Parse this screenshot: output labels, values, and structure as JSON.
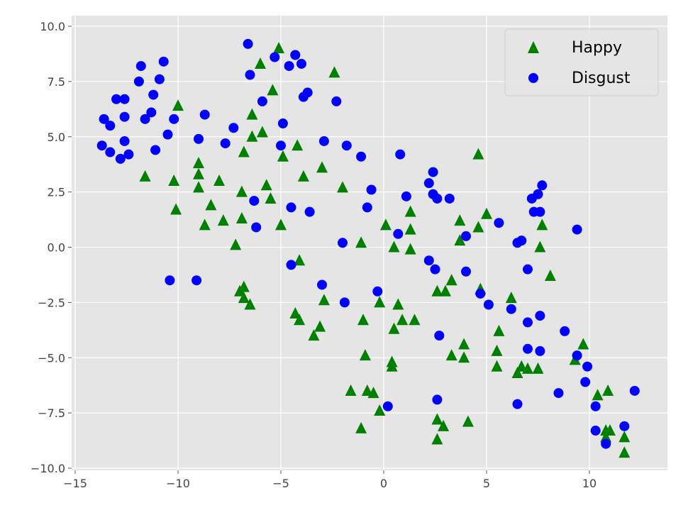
{
  "chart_data": {
    "type": "scatter",
    "xlim": [
      -15,
      14
    ],
    "ylim": [
      -10.5,
      10.5
    ],
    "xticks": [
      -15,
      -10,
      -5,
      0,
      5,
      10
    ],
    "yticks": [
      -10,
      -7.5,
      -5,
      -2.5,
      0,
      2.5,
      5,
      7.5,
      10
    ],
    "xtick_labels": [
      "−15",
      "−10",
      "−5",
      "0",
      "5",
      "10"
    ],
    "ytick_labels": [
      "−10.0",
      "−7.5",
      "−5.0",
      "−2.5",
      "0.0",
      "2.5",
      "5.0",
      "7.5",
      "10.0"
    ],
    "grid": true,
    "legend_position": "top-right",
    "background_color": "#e5e5e5",
    "series": [
      {
        "name": "Happy",
        "marker": "triangle",
        "color": "#008000",
        "points": [
          [
            -5.1,
            9.0
          ],
          [
            -6.0,
            8.3
          ],
          [
            -2.4,
            7.9
          ],
          [
            -5.4,
            7.1
          ],
          [
            -10.0,
            6.4
          ],
          [
            -6.4,
            6.0
          ],
          [
            -6.4,
            5.0
          ],
          [
            -5.9,
            5.2
          ],
          [
            -6.8,
            4.3
          ],
          [
            -4.9,
            4.1
          ],
          [
            -4.2,
            4.6
          ],
          [
            4.6,
            4.2
          ],
          [
            -11.6,
            3.2
          ],
          [
            -10.2,
            3.0
          ],
          [
            -9.0,
            3.8
          ],
          [
            -9.0,
            3.3
          ],
          [
            -9.0,
            2.7
          ],
          [
            -8.0,
            3.0
          ],
          [
            -3.0,
            3.6
          ],
          [
            -3.9,
            3.2
          ],
          [
            -5.7,
            2.8
          ],
          [
            -6.9,
            2.5
          ],
          [
            -5.5,
            2.2
          ],
          [
            -2.0,
            2.7
          ],
          [
            -10.1,
            1.7
          ],
          [
            -8.4,
            1.9
          ],
          [
            -8.7,
            1.0
          ],
          [
            -7.8,
            1.2
          ],
          [
            -6.9,
            1.3
          ],
          [
            -5.0,
            1.0
          ],
          [
            -7.2,
            0.1
          ],
          [
            1.3,
            1.6
          ],
          [
            3.7,
            1.2
          ],
          [
            5.0,
            1.5
          ],
          [
            4.6,
            0.9
          ],
          [
            1.3,
            0.8
          ],
          [
            0.1,
            1.0
          ],
          [
            -1.1,
            0.2
          ],
          [
            0.5,
            0.0
          ],
          [
            1.3,
            -0.1
          ],
          [
            3.7,
            0.3
          ],
          [
            7.7,
            1.0
          ],
          [
            7.6,
            0.0
          ],
          [
            8.1,
            -1.3
          ],
          [
            -4.1,
            -0.6
          ],
          [
            -7.0,
            -2.0
          ],
          [
            -6.8,
            -1.8
          ],
          [
            -6.8,
            -2.3
          ],
          [
            -6.5,
            -2.6
          ],
          [
            -2.9,
            -2.4
          ],
          [
            -4.3,
            -3.0
          ],
          [
            -4.1,
            -3.3
          ],
          [
            -3.1,
            -3.6
          ],
          [
            -3.4,
            -4.0
          ],
          [
            -0.2,
            -2.5
          ],
          [
            0.7,
            -2.6
          ],
          [
            0.9,
            -3.3
          ],
          [
            1.5,
            -3.3
          ],
          [
            0.5,
            -3.7
          ],
          [
            2.6,
            -2.0
          ],
          [
            3.0,
            -2.0
          ],
          [
            3.3,
            -1.5
          ],
          [
            4.7,
            -1.9
          ],
          [
            6.2,
            -2.3
          ],
          [
            -1.0,
            -3.3
          ],
          [
            -0.9,
            -4.9
          ],
          [
            0.4,
            -5.2
          ],
          [
            0.4,
            -5.4
          ],
          [
            -1.6,
            -6.5
          ],
          [
            -0.8,
            -6.5
          ],
          [
            -0.5,
            -6.6
          ],
          [
            -0.2,
            -7.4
          ],
          [
            -1.1,
            -8.2
          ],
          [
            2.6,
            -7.8
          ],
          [
            2.9,
            -8.1
          ],
          [
            2.6,
            -8.7
          ],
          [
            3.3,
            -4.9
          ],
          [
            3.9,
            -4.4
          ],
          [
            3.9,
            -5.0
          ],
          [
            4.1,
            -7.9
          ],
          [
            5.6,
            -3.8
          ],
          [
            5.5,
            -4.7
          ],
          [
            5.5,
            -5.4
          ],
          [
            6.7,
            -5.4
          ],
          [
            7.0,
            -5.5
          ],
          [
            7.5,
            -5.5
          ],
          [
            6.5,
            -5.7
          ],
          [
            9.3,
            -5.1
          ],
          [
            9.7,
            -4.4
          ],
          [
            10.4,
            -6.7
          ],
          [
            10.9,
            -6.5
          ],
          [
            10.8,
            -8.3
          ],
          [
            11.0,
            -8.3
          ],
          [
            10.8,
            -8.6
          ],
          [
            11.7,
            -8.6
          ],
          [
            11.7,
            -9.3
          ]
        ]
      },
      {
        "name": "Disgust",
        "marker": "circle",
        "color": "#0000ff",
        "points": [
          [
            -6.6,
            9.2
          ],
          [
            -5.3,
            8.6
          ],
          [
            -4.3,
            8.7
          ],
          [
            -4.6,
            8.2
          ],
          [
            -4.0,
            8.3
          ],
          [
            -6.5,
            7.8
          ],
          [
            -10.7,
            8.4
          ],
          [
            -11.8,
            8.2
          ],
          [
            -10.9,
            7.6
          ],
          [
            -11.9,
            7.5
          ],
          [
            -11.2,
            6.9
          ],
          [
            -13.0,
            6.7
          ],
          [
            -12.6,
            6.7
          ],
          [
            -13.6,
            5.8
          ],
          [
            -13.3,
            5.5
          ],
          [
            -12.6,
            5.9
          ],
          [
            -11.3,
            6.1
          ],
          [
            -11.6,
            5.8
          ],
          [
            -10.2,
            5.8
          ],
          [
            -8.7,
            6.0
          ],
          [
            -5.9,
            6.6
          ],
          [
            -3.7,
            7.0
          ],
          [
            -3.9,
            6.8
          ],
          [
            -2.3,
            6.6
          ],
          [
            -4.9,
            5.6
          ],
          [
            -7.3,
            5.4
          ],
          [
            -10.5,
            5.1
          ],
          [
            -9.0,
            4.9
          ],
          [
            -7.7,
            4.7
          ],
          [
            -5.0,
            4.6
          ],
          [
            -2.9,
            4.8
          ],
          [
            -13.7,
            4.6
          ],
          [
            -13.3,
            4.3
          ],
          [
            -12.6,
            4.8
          ],
          [
            -11.1,
            4.4
          ],
          [
            -12.8,
            4.0
          ],
          [
            -12.4,
            4.2
          ],
          [
            -1.8,
            4.6
          ],
          [
            -1.1,
            4.1
          ],
          [
            0.8,
            4.2
          ],
          [
            2.4,
            3.4
          ],
          [
            2.2,
            2.9
          ],
          [
            -0.6,
            2.6
          ],
          [
            1.1,
            2.3
          ],
          [
            2.4,
            2.4
          ],
          [
            2.6,
            2.2
          ],
          [
            3.2,
            2.2
          ],
          [
            7.2,
            2.2
          ],
          [
            7.5,
            2.4
          ],
          [
            7.7,
            2.8
          ],
          [
            7.3,
            1.6
          ],
          [
            7.6,
            1.6
          ],
          [
            -6.3,
            2.1
          ],
          [
            -4.5,
            1.8
          ],
          [
            -3.6,
            1.6
          ],
          [
            -0.8,
            1.8
          ],
          [
            5.6,
            1.1
          ],
          [
            9.4,
            0.8
          ],
          [
            -6.2,
            0.9
          ],
          [
            0.7,
            0.6
          ],
          [
            4.0,
            0.5
          ],
          [
            6.5,
            0.2
          ],
          [
            6.7,
            0.3
          ],
          [
            -2.0,
            0.2
          ],
          [
            -4.5,
            -0.8
          ],
          [
            2.2,
            -0.6
          ],
          [
            2.5,
            -1.0
          ],
          [
            4.0,
            -1.1
          ],
          [
            7.0,
            -1.0
          ],
          [
            -10.4,
            -1.5
          ],
          [
            -9.1,
            -1.5
          ],
          [
            -3.0,
            -1.7
          ],
          [
            -0.3,
            -2.0
          ],
          [
            4.7,
            -2.1
          ],
          [
            5.1,
            -2.6
          ],
          [
            6.2,
            -2.8
          ],
          [
            -1.9,
            -2.5
          ],
          [
            7.0,
            -3.4
          ],
          [
            7.6,
            -3.1
          ],
          [
            8.8,
            -3.8
          ],
          [
            2.7,
            -4.0
          ],
          [
            7.0,
            -4.6
          ],
          [
            7.6,
            -4.7
          ],
          [
            9.4,
            -4.9
          ],
          [
            9.9,
            -5.4
          ],
          [
            9.8,
            -6.1
          ],
          [
            8.5,
            -6.6
          ],
          [
            12.2,
            -6.5
          ],
          [
            2.6,
            -6.9
          ],
          [
            6.5,
            -7.1
          ],
          [
            0.2,
            -7.2
          ],
          [
            10.3,
            -7.2
          ],
          [
            10.3,
            -8.3
          ],
          [
            11.7,
            -8.1
          ],
          [
            10.8,
            -8.9
          ]
        ]
      }
    ]
  }
}
